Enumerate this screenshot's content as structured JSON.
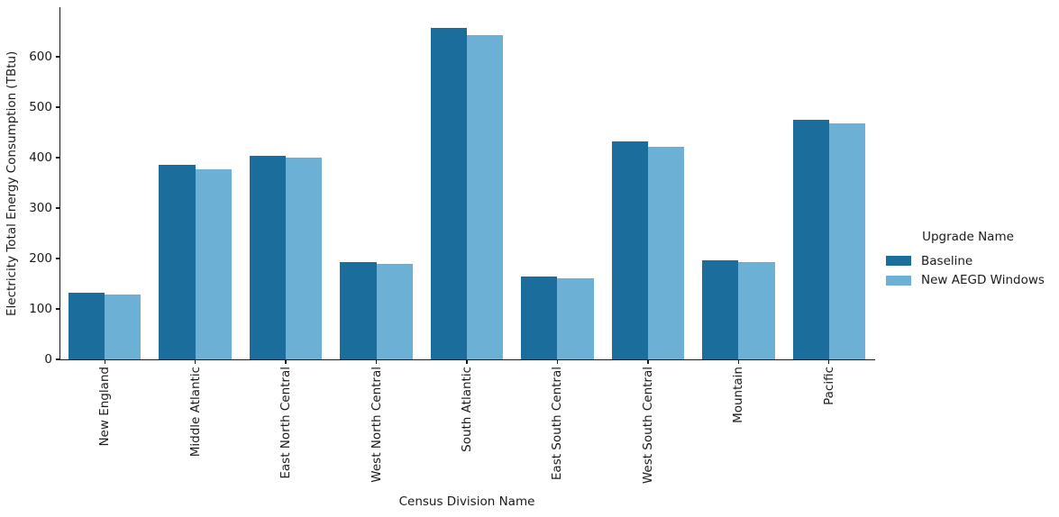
{
  "chart_data": {
    "type": "bar",
    "title": "",
    "xlabel": "Census Division Name",
    "ylabel": "Electricity Total Energy Consumption (TBtu)",
    "legend_title": "Upgrade Name",
    "legend_position": "center right",
    "grid": false,
    "background_color": "#ffffff",
    "axis_color": "#1a1a1a",
    "bar_orientation": "vertical",
    "xtick_rotation": 90,
    "categories": [
      "New England",
      "Middle Atlantic",
      "East North Central",
      "West North Central",
      "South Atlantic",
      "East South Central",
      "West South Central",
      "Mountain",
      "Pacific"
    ],
    "series": [
      {
        "name": "Baseline",
        "color": "#1b6d9c",
        "values": [
          132,
          385,
          404,
          192,
          657,
          164,
          432,
          197,
          474
        ]
      },
      {
        "name": "New AEGD Windows",
        "color": "#6cb0d5",
        "values": [
          128,
          377,
          399,
          189,
          643,
          160,
          421,
          193,
          467
        ]
      }
    ],
    "yticks": [
      0,
      100,
      200,
      300,
      400,
      500,
      600
    ],
    "ylim": [
      0,
      698
    ]
  }
}
